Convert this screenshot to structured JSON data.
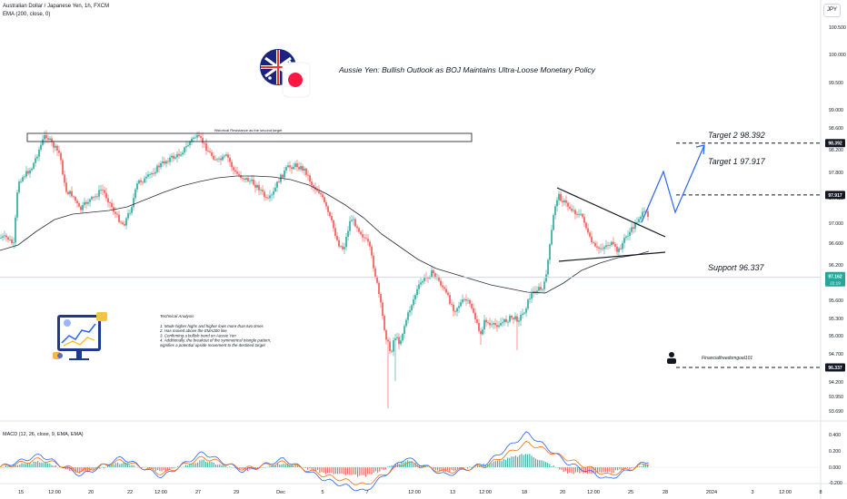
{
  "header": {
    "symbol_line": "Australian Dollar / Japanese Yen, 1h, FXCM",
    "ema_line": "EMA (200, close, 0)",
    "currency_button": "JPY"
  },
  "title": "Aussie Yen: Bullish Outlook as BOJ Maintains Ultra-Loose Monetary Policy",
  "annotations": {
    "resistance_label": "Historical Resistance as the second target",
    "target2": "Target 2  98.392",
    "target1": "Target 1  97.917",
    "support": "Support 96.337",
    "author": "Financialfreedomgoal101",
    "analysis_heading": "Technical Analysis",
    "analysis_lines": [
      "1. Made higher highs and higher lows more than two times",
      "2. Has moved above the EMA200 line",
      "3. Confirming a bullish trend on Aussie Yen",
      "4. Additionally, the breakout  of the symmetrical triangle pattern,",
      "signifies a potential upside movement to the destined target"
    ]
  },
  "price_axis": {
    "ticks": [
      "100.500",
      "100.000",
      "99.500",
      "99.000",
      "98.600",
      "98.200",
      "97.800",
      "97.400",
      "97.000",
      "96.600",
      "96.200",
      "95.900",
      "95.600",
      "95.300",
      "95.000",
      "94.700",
      "94.450",
      "94.200",
      "93.950",
      "93.690"
    ],
    "badge_target2": "98.392",
    "badge_target1": "97.917",
    "badge_price": "97.162",
    "badge_countdown": "22:19",
    "badge_support": "96.337"
  },
  "macd_axis": {
    "ticks": [
      "0.400",
      "0.200",
      "0.000",
      "-0.200"
    ]
  },
  "time_axis": [
    "15",
    "12:00",
    "20",
    "22",
    "12:00",
    "27",
    "29",
    "Dec",
    "5",
    "7",
    "12:00",
    "13",
    "12:00",
    "18",
    "20",
    "12:00",
    "25",
    "28",
    "2024",
    "3",
    "12:00",
    "8"
  ],
  "macd_label": "MACD (12, 26, close, 9, EMA, EMA)",
  "colors": {
    "up": "#26a69a",
    "down": "#ef5350",
    "ema": "#2a2e39",
    "macd_line": "#2962ff",
    "signal_line": "#ff6d00",
    "price_line": "#26a69a"
  },
  "chart_data": [
    {
      "type": "candlestick",
      "title": "Aussie Yen: Bullish Outlook as BOJ Maintains Ultra-Loose Monetary Policy",
      "ylim": [
        93.5,
        100.7
      ],
      "overlays": [
        "EMA 200"
      ],
      "levels": {
        "target_2": 98.392,
        "target_1": 97.917,
        "last_price": 97.162,
        "support": 96.337
      },
      "anchor_closes": [
        {
          "x": "15",
          "y": 96.6
        },
        {
          "x": "15",
          "y": 98.0
        },
        {
          "x": "20",
          "y": 97.1
        },
        {
          "x": "22",
          "y": 96.9
        },
        {
          "x": "27",
          "y": 98.5
        },
        {
          "x": "29",
          "y": 97.8
        },
        {
          "x": "Dec",
          "y": 98.0
        },
        {
          "x": "5",
          "y": 97.5
        },
        {
          "x": "7",
          "y": 94.6
        },
        {
          "x": "12:00",
          "y": 95.7
        },
        {
          "x": "13",
          "y": 95.1
        },
        {
          "x": "18",
          "y": 95.6
        },
        {
          "x": "20",
          "y": 97.3
        },
        {
          "x": "12:00",
          "y": 96.4
        },
        {
          "x": "25",
          "y": 97.162
        }
      ]
    },
    {
      "type": "line",
      "title": "MACD (12, 26, close, 9, EMA, EMA)",
      "ylim": [
        -0.3,
        0.45
      ],
      "series": [
        {
          "name": "MACD",
          "values": [
            0.0,
            0.15,
            -0.1,
            0.12,
            -0.12,
            0.18,
            -0.05,
            0.1,
            -0.15,
            -0.3,
            0.12,
            -0.1,
            0.05,
            0.42,
            0.05,
            -0.15,
            0.08
          ]
        },
        {
          "name": "Signal",
          "values": [
            0.0,
            0.1,
            -0.05,
            0.08,
            -0.08,
            0.12,
            -0.02,
            0.06,
            -0.1,
            -0.22,
            0.06,
            -0.06,
            0.02,
            0.3,
            0.1,
            -0.1,
            0.05
          ]
        }
      ]
    }
  ]
}
